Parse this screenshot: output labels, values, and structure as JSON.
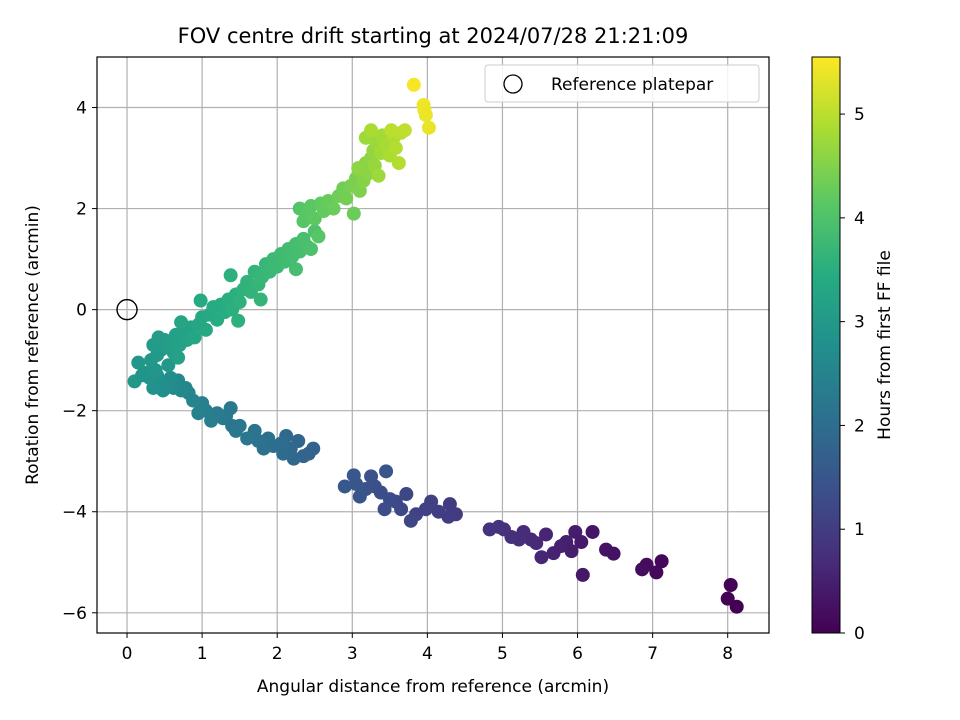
{
  "chart_data": {
    "type": "scatter",
    "title": "FOV centre drift starting at 2024/07/28 21:21:09",
    "xlabel": "Angular distance from reference (arcmin)",
    "ylabel": "Rotation from reference (arcmin)",
    "xlim": [
      -0.4,
      8.55
    ],
    "ylim": [
      -6.4,
      5.0
    ],
    "xticks": [
      0,
      1,
      2,
      3,
      4,
      5,
      6,
      7,
      8
    ],
    "yticks": [
      -6,
      -4,
      -2,
      0,
      2,
      4
    ],
    "grid": true,
    "legend": {
      "position": "top-right",
      "entries": [
        "Reference platepar"
      ]
    },
    "reference_point": {
      "x": 0,
      "y": 0,
      "label": "Reference platepar"
    },
    "colorbar": {
      "label": "Hours from first FF file",
      "range": [
        0,
        5.55
      ],
      "ticks": [
        0,
        1,
        2,
        3,
        4,
        5
      ],
      "colormap": "viridis"
    },
    "series": [
      {
        "color_by": "hours",
        "points": [
          [
            8.12,
            -5.88,
            0.0
          ],
          [
            8.0,
            -5.72,
            0.02
          ],
          [
            8.04,
            -5.45,
            0.04
          ],
          [
            7.12,
            -4.98,
            0.1
          ],
          [
            7.05,
            -5.2,
            0.13
          ],
          [
            6.92,
            -5.05,
            0.16
          ],
          [
            6.86,
            -5.14,
            0.19
          ],
          [
            6.48,
            -4.83,
            0.26
          ],
          [
            6.38,
            -4.75,
            0.29
          ],
          [
            6.2,
            -4.4,
            0.33
          ],
          [
            6.07,
            -5.25,
            0.37
          ],
          [
            6.05,
            -4.6,
            0.4
          ],
          [
            5.97,
            -4.4,
            0.43
          ],
          [
            5.92,
            -4.78,
            0.46
          ],
          [
            5.85,
            -4.6,
            0.49
          ],
          [
            5.78,
            -4.68,
            0.52
          ],
          [
            5.68,
            -4.82,
            0.55
          ],
          [
            5.58,
            -4.45,
            0.58
          ],
          [
            5.52,
            -4.9,
            0.61
          ],
          [
            5.45,
            -4.62,
            0.64
          ],
          [
            5.38,
            -4.55,
            0.67
          ],
          [
            5.28,
            -4.4,
            0.7
          ],
          [
            5.22,
            -4.55,
            0.73
          ],
          [
            5.12,
            -4.5,
            0.76
          ],
          [
            5.02,
            -4.35,
            0.79
          ],
          [
            4.95,
            -4.3,
            0.82
          ],
          [
            4.83,
            -4.35,
            0.85
          ],
          [
            4.38,
            -4.05,
            0.95
          ],
          [
            4.3,
            -3.85,
            0.98
          ],
          [
            4.28,
            -4.1,
            1.01
          ],
          [
            4.15,
            -4.0,
            1.04
          ],
          [
            4.05,
            -3.8,
            1.07
          ],
          [
            3.98,
            -3.95,
            1.1
          ],
          [
            3.85,
            -4.05,
            1.13
          ],
          [
            3.78,
            -4.18,
            1.16
          ],
          [
            3.72,
            -3.65,
            1.19
          ],
          [
            3.65,
            -3.95,
            1.22
          ],
          [
            3.58,
            -3.8,
            1.25
          ],
          [
            3.5,
            -3.75,
            1.28
          ],
          [
            3.43,
            -3.95,
            1.31
          ],
          [
            3.38,
            -3.62,
            1.34
          ],
          [
            3.3,
            -3.5,
            1.37
          ],
          [
            3.25,
            -3.3,
            1.4
          ],
          [
            3.18,
            -3.55,
            1.43
          ],
          [
            3.1,
            -3.7,
            1.46
          ],
          [
            3.05,
            -3.45,
            1.49
          ],
          [
            3.02,
            -3.28,
            1.52
          ],
          [
            2.9,
            -3.5,
            1.55
          ],
          [
            3.45,
            -3.2,
            1.5
          ],
          [
            2.48,
            -2.75,
            1.75
          ],
          [
            2.42,
            -2.85,
            1.78
          ],
          [
            2.35,
            -2.9,
            1.81
          ],
          [
            2.28,
            -2.6,
            1.84
          ],
          [
            2.22,
            -2.95,
            1.87
          ],
          [
            2.18,
            -2.75,
            1.9
          ],
          [
            2.12,
            -2.5,
            1.93
          ],
          [
            2.08,
            -2.85,
            1.96
          ],
          [
            2.05,
            -2.65,
            1.99
          ],
          [
            1.95,
            -2.7,
            2.02
          ],
          [
            1.88,
            -2.55,
            2.05
          ],
          [
            1.82,
            -2.75,
            2.08
          ],
          [
            1.75,
            -2.6,
            2.11
          ],
          [
            1.7,
            -2.4,
            2.14
          ],
          [
            1.6,
            -2.55,
            2.17
          ],
          [
            1.5,
            -2.3,
            2.2
          ],
          [
            1.38,
            -1.95,
            2.23
          ],
          [
            1.32,
            -2.1,
            2.26
          ],
          [
            1.28,
            -2.15,
            2.29
          ],
          [
            1.2,
            -2.05,
            2.32
          ],
          [
            1.12,
            -2.2,
            2.35
          ],
          [
            1.05,
            -2.0,
            2.38
          ],
          [
            1.0,
            -1.85,
            2.41
          ],
          [
            0.95,
            -2.05,
            2.44
          ],
          [
            1.4,
            -2.3,
            2.2
          ],
          [
            1.45,
            -2.4,
            2.22
          ],
          [
            0.88,
            -1.8,
            2.5
          ],
          [
            0.82,
            -1.65,
            2.53
          ],
          [
            0.78,
            -1.55,
            2.56
          ],
          [
            0.72,
            -1.6,
            2.59
          ],
          [
            0.68,
            -1.4,
            2.62
          ],
          [
            0.62,
            -1.55,
            2.65
          ],
          [
            0.58,
            -1.35,
            2.68
          ],
          [
            0.52,
            -1.5,
            2.71
          ],
          [
            0.48,
            -1.6,
            2.74
          ],
          [
            0.45,
            -1.45,
            2.77
          ],
          [
            0.4,
            -1.3,
            2.8
          ],
          [
            0.35,
            -1.55,
            2.83
          ],
          [
            0.3,
            -1.35,
            2.86
          ],
          [
            0.25,
            -1.25,
            2.89
          ],
          [
            0.15,
            -1.05,
            2.92
          ],
          [
            0.1,
            -1.42,
            2.95
          ],
          [
            0.2,
            -1.3,
            2.9
          ],
          [
            0.38,
            -1.2,
            2.92
          ],
          [
            0.55,
            -1.1,
            2.95
          ],
          [
            0.32,
            -1.0,
            2.97
          ],
          [
            0.4,
            -0.9,
            2.99
          ],
          [
            0.45,
            -0.8,
            3.01
          ],
          [
            0.35,
            -0.7,
            3.03
          ],
          [
            0.5,
            -0.6,
            3.05
          ],
          [
            0.42,
            -0.55,
            3.07
          ],
          [
            0.55,
            -0.75,
            3.09
          ],
          [
            0.62,
            -0.85,
            3.11
          ],
          [
            0.58,
            -0.65,
            3.13
          ],
          [
            0.65,
            -0.5,
            3.15
          ],
          [
            0.7,
            -0.7,
            3.17
          ],
          [
            0.75,
            -0.45,
            3.19
          ],
          [
            0.68,
            -0.95,
            3.21
          ],
          [
            0.8,
            -0.6,
            3.23
          ],
          [
            0.85,
            -0.35,
            3.25
          ],
          [
            0.72,
            -0.25,
            3.27
          ],
          [
            0.9,
            -0.55,
            3.29
          ],
          [
            0.95,
            -0.3,
            3.31
          ],
          [
            1.0,
            -0.15,
            3.33
          ],
          [
            1.05,
            -0.4,
            3.35
          ],
          [
            1.1,
            -0.1,
            3.37
          ],
          [
            0.98,
            0.18,
            3.39
          ],
          [
            1.15,
            0.05,
            3.41
          ],
          [
            1.2,
            -0.2,
            3.43
          ],
          [
            1.25,
            0.1,
            3.45
          ],
          [
            1.3,
            -0.05,
            3.47
          ],
          [
            1.35,
            0.2,
            3.49
          ],
          [
            1.4,
            0.0,
            3.51
          ],
          [
            1.45,
            0.3,
            3.53
          ],
          [
            1.38,
            0.68,
            3.55
          ],
          [
            1.5,
            0.15,
            3.57
          ],
          [
            1.55,
            0.4,
            3.59
          ],
          [
            1.6,
            0.55,
            3.61
          ],
          [
            1.48,
            -0.22,
            3.55
          ],
          [
            1.65,
            0.35,
            3.63
          ],
          [
            1.7,
            0.75,
            3.65
          ],
          [
            1.75,
            0.5,
            3.67
          ],
          [
            1.8,
            0.65,
            3.69
          ],
          [
            1.85,
            0.9,
            3.71
          ],
          [
            1.78,
            0.2,
            3.65
          ],
          [
            1.9,
            0.75,
            3.73
          ],
          [
            1.95,
            1.0,
            3.75
          ],
          [
            2.0,
            0.85,
            3.77
          ],
          [
            2.05,
            1.1,
            3.79
          ],
          [
            2.1,
            0.95,
            3.81
          ],
          [
            2.15,
            1.2,
            3.83
          ],
          [
            2.2,
            1.05,
            3.85
          ],
          [
            2.25,
            1.3,
            3.87
          ],
          [
            2.3,
            1.15,
            3.89
          ],
          [
            2.35,
            1.4,
            3.91
          ],
          [
            2.4,
            1.25,
            3.93
          ],
          [
            2.45,
            1.2,
            3.95
          ],
          [
            2.25,
            0.8,
            3.87
          ],
          [
            2.5,
            1.55,
            3.97
          ],
          [
            2.3,
            2.0,
            4.05
          ],
          [
            2.35,
            1.75,
            4.08
          ],
          [
            2.4,
            1.9,
            4.11
          ],
          [
            2.45,
            2.05,
            4.14
          ],
          [
            2.5,
            1.8,
            4.17
          ],
          [
            2.55,
            1.45,
            4.1
          ],
          [
            2.58,
            2.1,
            4.2
          ],
          [
            2.62,
            1.95,
            4.23
          ],
          [
            2.68,
            2.15,
            4.26
          ],
          [
            2.75,
            2.0,
            4.29
          ],
          [
            2.82,
            2.25,
            4.32
          ],
          [
            2.88,
            2.4,
            4.35
          ],
          [
            2.92,
            2.2,
            4.38
          ],
          [
            2.98,
            2.45,
            4.41
          ],
          [
            3.02,
            1.9,
            4.3
          ],
          [
            3.05,
            2.6,
            4.44
          ],
          [
            3.1,
            2.35,
            4.47
          ],
          [
            3.12,
            2.75,
            4.5
          ],
          [
            3.15,
            2.55,
            4.53
          ],
          [
            3.18,
            2.9,
            4.56
          ],
          [
            3.22,
            2.7,
            4.59
          ],
          [
            3.25,
            3.0,
            4.62
          ],
          [
            3.28,
            3.15,
            4.65
          ],
          [
            3.3,
            2.85,
            4.68
          ],
          [
            3.32,
            3.3,
            4.71
          ],
          [
            3.35,
            2.65,
            4.74
          ],
          [
            3.38,
            3.1,
            4.77
          ],
          [
            3.4,
            3.45,
            4.8
          ],
          [
            3.45,
            3.25,
            4.83
          ],
          [
            3.5,
            3.05,
            4.86
          ],
          [
            3.55,
            3.4,
            4.89
          ],
          [
            3.58,
            3.2,
            4.92
          ],
          [
            3.62,
            2.9,
            4.95
          ],
          [
            3.65,
            3.5,
            4.98
          ],
          [
            3.52,
            3.55,
            5.0
          ],
          [
            3.7,
            3.55,
            5.02
          ],
          [
            3.18,
            3.4,
            4.75
          ],
          [
            3.25,
            3.55,
            4.85
          ],
          [
            3.08,
            2.8,
            4.6
          ],
          [
            3.82,
            4.45,
            5.5
          ],
          [
            3.95,
            4.05,
            5.45
          ],
          [
            3.96,
            3.95,
            5.42
          ],
          [
            3.98,
            3.85,
            5.4
          ],
          [
            4.02,
            3.6,
            5.38
          ]
        ]
      }
    ]
  }
}
